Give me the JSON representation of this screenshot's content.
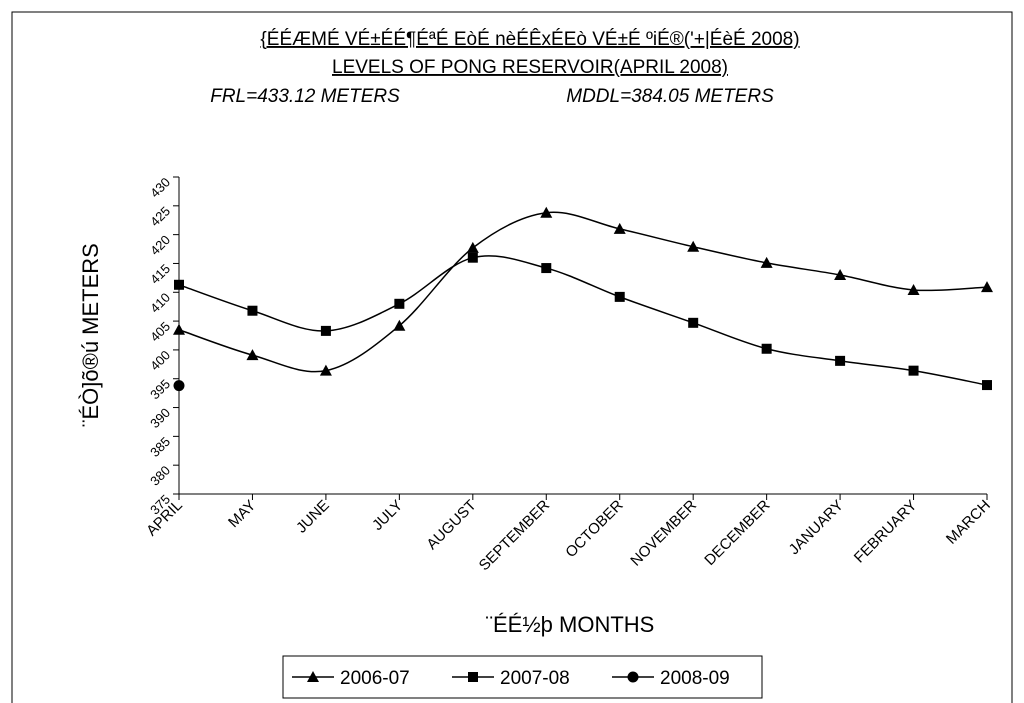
{
  "chart_data": {
    "type": "line",
    "title": "{ÉÉÆMÉ VÉ±ÉÉ¶ÉªÉ EòÉ nèÉÊxÉEò VÉ±É ºiÉ®('+|ÉèÉ 2008)",
    "subtitle": "LEVELS OF PONG RESERVOIR(APRIL 2008)",
    "annotations": [
      "FRL=433.12 METERS",
      "MDDL=384.05 METERS"
    ],
    "y_label": "¨ÉÒ]õ®ú METERS",
    "x_label": "¨ÉÉ½þ MONTHS",
    "categories": [
      "APRIL",
      "MAY",
      "JUNE",
      "JULY",
      "AUGUST",
      "SEPTEMBER",
      "OCTOBER",
      "NOVEMBER",
      "DECEMBER",
      "JANUARY",
      "FEBRUARY",
      "MARCH"
    ],
    "series": [
      {
        "name": "2006-07",
        "color": "#000000",
        "marker": "triangle",
        "values": [
          403.5,
          399.1,
          396.4,
          404.2,
          417.7,
          423.8,
          421.0,
          417.9,
          415.1,
          413.0,
          410.4,
          410.9
        ]
      },
      {
        "name": "2007-08",
        "color": "#000000",
        "marker": "square",
        "values": [
          411.3,
          406.8,
          403.3,
          408.0,
          416.0,
          414.2,
          409.2,
          404.7,
          400.2,
          398.1,
          396.4,
          393.9
        ]
      },
      {
        "name": "2008-09",
        "color": "#000000",
        "marker": "circle",
        "values": [
          393.8,
          null,
          null,
          null,
          null,
          null,
          null,
          null,
          null,
          null,
          null,
          null
        ]
      }
    ],
    "ylim": [
      375,
      430
    ],
    "yticks": [
      375,
      380,
      385,
      390,
      395,
      400,
      405,
      410,
      415,
      420,
      425,
      430
    ],
    "grid": false,
    "legend": "bottom"
  }
}
